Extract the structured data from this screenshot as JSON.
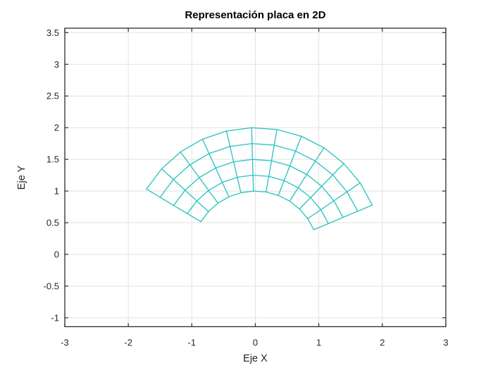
{
  "figure": {
    "background": "#ffffff"
  },
  "chart_data": {
    "type": "mesh",
    "title": "Representación placa en 2D",
    "xlabel": "Eje X",
    "ylabel": "Eje Y",
    "xlim": [
      -3,
      3
    ],
    "ylim": [
      -1.14,
      3.57
    ],
    "xticks": [
      -3,
      -2,
      -1,
      0,
      1,
      2,
      3
    ],
    "yticks": [
      -1,
      -0.5,
      0,
      0.5,
      1,
      1.5,
      2,
      2.5,
      3,
      3.5
    ],
    "grid": true,
    "legend": null,
    "mesh": {
      "shape": "annular-sector-plate",
      "center": [
        0,
        0
      ],
      "r_values": [
        1,
        1.25,
        1.5,
        1.75,
        2
      ],
      "theta_values_rad": [
        0.4,
        0.6,
        0.8,
        1.0,
        1.2,
        1.4,
        1.6,
        1.8,
        2.0,
        2.2,
        2.4,
        2.6
      ],
      "radial_divisions": 4,
      "angular_divisions": 11,
      "inner_radius": 1,
      "outer_radius": 2,
      "theta_start_rad": 0.4,
      "theta_end_rad": 2.6
    },
    "colors": {
      "mesh_line": "#26c3bd",
      "grid_line": "#e2e2e2",
      "axis_line": "#2b2b2b",
      "tick_label": "#262626",
      "title_text": "#000000"
    }
  }
}
